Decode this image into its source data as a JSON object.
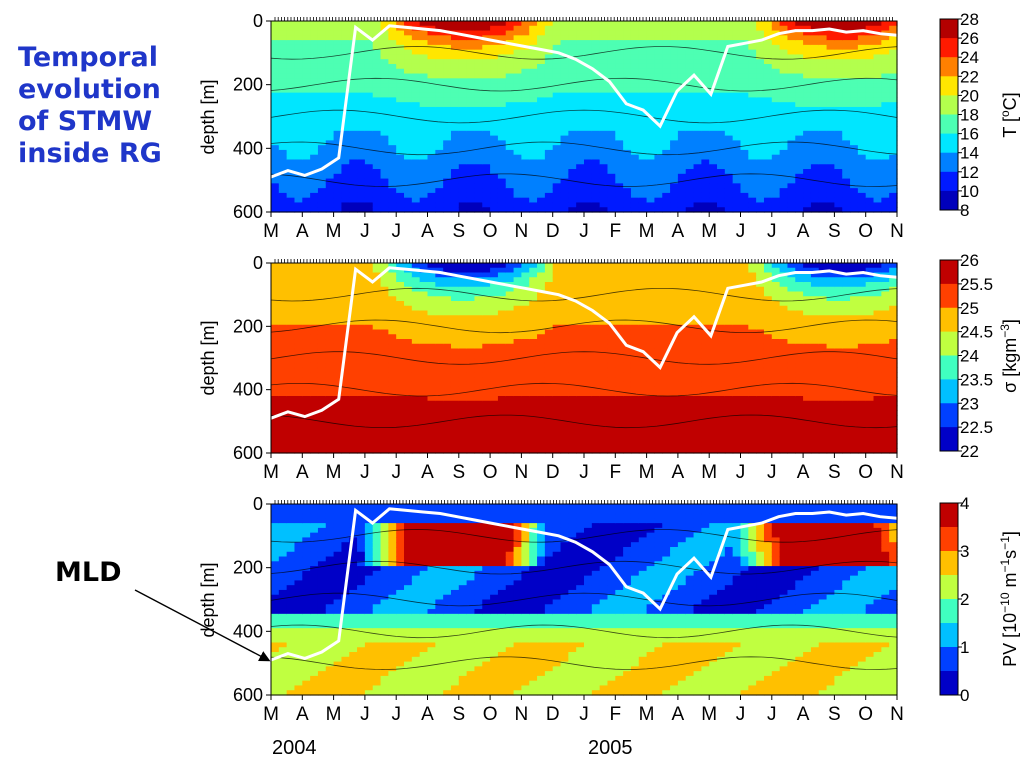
{
  "title_lines": [
    "Temporal",
    "evolution",
    "of STMW",
    "inside RG"
  ],
  "annotation": {
    "label": "MLD"
  },
  "years": [
    "2004",
    "2005"
  ],
  "months": [
    "M",
    "A",
    "M",
    "J",
    "J",
    "A",
    "S",
    "O",
    "N",
    "D",
    "J",
    "F",
    "M",
    "A",
    "M",
    "J",
    "J",
    "A",
    "S",
    "O",
    "N"
  ],
  "colors": {
    "title": "#1f36c9",
    "mld_line": "#ffffff",
    "jet": [
      "#00008f",
      "#0000ff",
      "#0080ff",
      "#00ffff",
      "#80ff80",
      "#ffff00",
      "#ff8000",
      "#ff0000",
      "#800000"
    ]
  },
  "chart_data": [
    {
      "type": "heatmap",
      "variable": "temperature",
      "ylabel": "depth [m]",
      "ylim": [
        0,
        600
      ],
      "y_ticks": [
        "0",
        "200",
        "400",
        "600"
      ],
      "x_tick_labels": [
        "M",
        "A",
        "M",
        "J",
        "J",
        "A",
        "S",
        "O",
        "N",
        "D",
        "J",
        "F",
        "M",
        "A",
        "M",
        "J",
        "J",
        "A",
        "S",
        "O",
        "N"
      ],
      "colorbar": {
        "label": "T [°C]",
        "label_main": "T [",
        "label_sup": "o",
        "label_end": "C]",
        "ticks": [
          "28",
          "26",
          "24",
          "22",
          "20",
          "18",
          "16",
          "14",
          "12",
          "10",
          "8"
        ],
        "range": [
          8,
          28
        ]
      },
      "mld_depth_m": [
        490,
        470,
        485,
        465,
        430,
        20,
        60,
        15,
        20,
        25,
        30,
        40,
        50,
        60,
        70,
        80,
        90,
        100,
        120,
        150,
        190,
        260,
        280,
        330,
        220,
        170,
        230,
        80,
        70,
        60,
        40,
        30,
        30,
        25,
        35,
        30,
        40,
        45
      ]
    },
    {
      "type": "heatmap",
      "variable": "potential density",
      "ylabel": "depth [m]",
      "ylim": [
        0,
        600
      ],
      "y_ticks": [
        "0",
        "200",
        "400",
        "600"
      ],
      "x_tick_labels": [
        "M",
        "A",
        "M",
        "J",
        "J",
        "A",
        "S",
        "O",
        "N",
        "D",
        "J",
        "F",
        "M",
        "A",
        "M",
        "J",
        "J",
        "A",
        "S",
        "O",
        "N"
      ],
      "colorbar": {
        "label": "σ [kgm⁻³]",
        "label_main": "σ  [kgm",
        "label_sup": "−3",
        "label_end": "]",
        "ticks": [
          "26",
          "25.5",
          "25",
          "24.5",
          "24",
          "23.5",
          "23",
          "22.5",
          "22"
        ],
        "range": [
          22,
          26
        ]
      },
      "mld_depth_m": [
        490,
        470,
        485,
        465,
        430,
        20,
        60,
        15,
        20,
        25,
        30,
        40,
        50,
        60,
        70,
        80,
        90,
        100,
        120,
        150,
        190,
        260,
        280,
        330,
        220,
        170,
        230,
        80,
        70,
        60,
        40,
        30,
        30,
        25,
        35,
        30,
        40,
        45
      ]
    },
    {
      "type": "heatmap",
      "variable": "potential vorticity",
      "ylabel": "depth [m]",
      "ylim": [
        0,
        600
      ],
      "y_ticks": [
        "0",
        "200",
        "400",
        "600"
      ],
      "x_tick_labels": [
        "M",
        "A",
        "M",
        "J",
        "J",
        "A",
        "S",
        "O",
        "N",
        "D",
        "J",
        "F",
        "M",
        "A",
        "M",
        "J",
        "J",
        "A",
        "S",
        "O",
        "N"
      ],
      "colorbar": {
        "label": "PV [10⁻¹⁰ m⁻¹s⁻¹]",
        "label_main": "PV [10",
        "label_sup": "−10",
        "label_mid": " m",
        "label_sup2": "−1",
        "label_mid2": "s",
        "label_sup3": "−1",
        "label_end": "]",
        "ticks": [
          "4",
          "3",
          "2",
          "1",
          "0"
        ],
        "range": [
          0,
          4
        ]
      },
      "mld_depth_m": [
        490,
        470,
        485,
        465,
        430,
        20,
        60,
        15,
        20,
        25,
        30,
        40,
        50,
        60,
        70,
        80,
        90,
        100,
        120,
        150,
        190,
        260,
        280,
        330,
        220,
        170,
        230,
        80,
        70,
        60,
        40,
        30,
        30,
        25,
        35,
        30,
        40,
        45
      ]
    }
  ]
}
